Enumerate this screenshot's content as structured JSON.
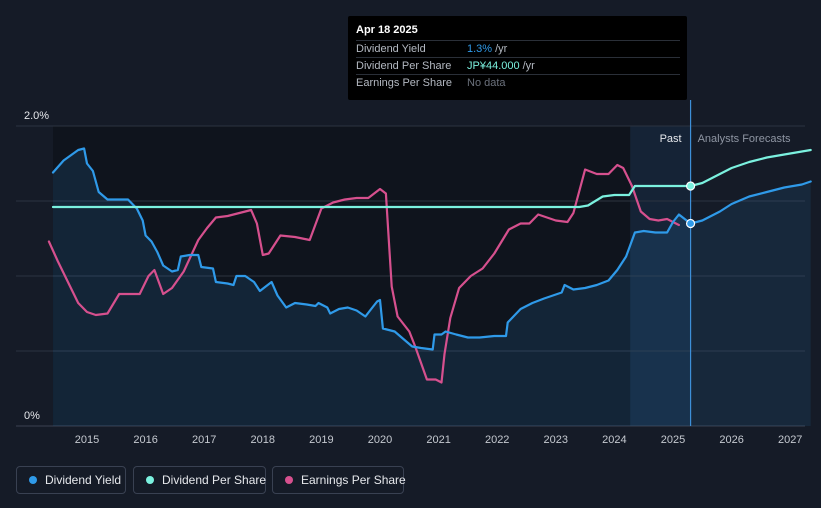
{
  "tooltip": {
    "date": "Apr 18 2025",
    "rows": [
      {
        "label": "Dividend Yield",
        "value": "1.3%",
        "unit": "/yr",
        "color": "#2f9ae9"
      },
      {
        "label": "Dividend Per Share",
        "value": "JP¥44.000",
        "unit": "/yr",
        "color": "#7bf1df"
      },
      {
        "label": "Earnings Per Share",
        "value": "No data",
        "unit": "",
        "color": "#6b717c"
      }
    ]
  },
  "legend": [
    {
      "label": "Dividend Yield",
      "color": "#2f9ae9"
    },
    {
      "label": "Dividend Per Share",
      "color": "#7bf1df"
    },
    {
      "label": "Earnings Per Share",
      "color": "#d6508e"
    }
  ],
  "chart_data": {
    "type": "line",
    "y_tick_labels": [
      "2.0%",
      "0%"
    ],
    "ylim": [
      0,
      2.0
    ],
    "xlim": [
      2014.25,
      2027.35
    ],
    "x_tick_labels": [
      "2015",
      "2016",
      "2017",
      "2018",
      "2019",
      "2020",
      "2021",
      "2022",
      "2023",
      "2024",
      "2025",
      "2026",
      "2027"
    ],
    "region_labels": {
      "past": "Past",
      "forecast": "Analysts Forecasts"
    },
    "past_end": 2025.3,
    "forecast_band_start": 2024.27,
    "grid": true,
    "series": [
      {
        "name": "Dividend Yield",
        "color": "#2f9ae9",
        "points": [
          [
            2014.42,
            1.69
          ],
          [
            2014.6,
            1.77
          ],
          [
            2014.85,
            1.84
          ],
          [
            2014.95,
            1.85
          ],
          [
            2015.0,
            1.75
          ],
          [
            2015.1,
            1.7
          ],
          [
            2015.2,
            1.56
          ],
          [
            2015.35,
            1.51
          ],
          [
            2015.5,
            1.51
          ],
          [
            2015.7,
            1.51
          ],
          [
            2015.85,
            1.45
          ],
          [
            2015.95,
            1.37
          ],
          [
            2016.0,
            1.27
          ],
          [
            2016.1,
            1.23
          ],
          [
            2016.2,
            1.16
          ],
          [
            2016.3,
            1.07
          ],
          [
            2016.45,
            1.03
          ],
          [
            2016.55,
            1.04
          ],
          [
            2016.6,
            1.13
          ],
          [
            2016.75,
            1.14
          ],
          [
            2016.9,
            1.14
          ],
          [
            2016.95,
            1.06
          ],
          [
            2017.15,
            1.05
          ],
          [
            2017.2,
            0.96
          ],
          [
            2017.4,
            0.95
          ],
          [
            2017.5,
            0.94
          ],
          [
            2017.55,
            1.0
          ],
          [
            2017.7,
            1.0
          ],
          [
            2017.85,
            0.96
          ],
          [
            2017.95,
            0.9
          ],
          [
            2018.05,
            0.93
          ],
          [
            2018.15,
            0.96
          ],
          [
            2018.25,
            0.87
          ],
          [
            2018.4,
            0.79
          ],
          [
            2018.55,
            0.82
          ],
          [
            2018.75,
            0.81
          ],
          [
            2018.9,
            0.8
          ],
          [
            2018.95,
            0.82
          ],
          [
            2019.1,
            0.79
          ],
          [
            2019.15,
            0.75
          ],
          [
            2019.3,
            0.78
          ],
          [
            2019.45,
            0.79
          ],
          [
            2019.6,
            0.77
          ],
          [
            2019.75,
            0.73
          ],
          [
            2019.85,
            0.78
          ],
          [
            2019.95,
            0.83
          ],
          [
            2020.0,
            0.84
          ],
          [
            2020.05,
            0.65
          ],
          [
            2020.25,
            0.63
          ],
          [
            2020.4,
            0.58
          ],
          [
            2020.55,
            0.53
          ],
          [
            2020.7,
            0.52
          ],
          [
            2020.9,
            0.51
          ],
          [
            2020.93,
            0.61
          ],
          [
            2021.05,
            0.61
          ],
          [
            2021.12,
            0.63
          ],
          [
            2021.3,
            0.61
          ],
          [
            2021.5,
            0.59
          ],
          [
            2021.7,
            0.59
          ],
          [
            2021.95,
            0.6
          ],
          [
            2022.15,
            0.6
          ],
          [
            2022.18,
            0.69
          ],
          [
            2022.4,
            0.78
          ],
          [
            2022.6,
            0.82
          ],
          [
            2022.8,
            0.85
          ],
          [
            2022.95,
            0.87
          ],
          [
            2023.1,
            0.89
          ],
          [
            2023.15,
            0.94
          ],
          [
            2023.3,
            0.91
          ],
          [
            2023.5,
            0.92
          ],
          [
            2023.7,
            0.94
          ],
          [
            2023.9,
            0.97
          ],
          [
            2024.05,
            1.04
          ],
          [
            2024.2,
            1.13
          ],
          [
            2024.35,
            1.29
          ],
          [
            2024.5,
            1.3
          ],
          [
            2024.7,
            1.29
          ],
          [
            2024.9,
            1.29
          ],
          [
            2025.0,
            1.36
          ],
          [
            2025.1,
            1.41
          ],
          [
            2025.2,
            1.38
          ],
          [
            2025.3,
            1.35
          ]
        ]
      },
      {
        "name": "Dividend Per Share",
        "color": "#7bf1df",
        "points": [
          [
            2014.42,
            1.46
          ],
          [
            2015.0,
            1.46
          ],
          [
            2016.0,
            1.46
          ],
          [
            2017.0,
            1.46
          ],
          [
            2018.0,
            1.46
          ],
          [
            2019.0,
            1.46
          ],
          [
            2020.0,
            1.46
          ],
          [
            2021.0,
            1.46
          ],
          [
            2022.0,
            1.46
          ],
          [
            2023.0,
            1.46
          ],
          [
            2023.4,
            1.46
          ],
          [
            2023.55,
            1.47
          ],
          [
            2023.8,
            1.53
          ],
          [
            2024.0,
            1.54
          ],
          [
            2024.25,
            1.54
          ],
          [
            2024.35,
            1.6
          ],
          [
            2025.3,
            1.6
          ]
        ]
      },
      {
        "name": "Earnings Per Share",
        "color": "#d6508e",
        "points": [
          [
            2014.35,
            1.23
          ],
          [
            2014.5,
            1.1
          ],
          [
            2014.7,
            0.94
          ],
          [
            2014.85,
            0.82
          ],
          [
            2015.0,
            0.76
          ],
          [
            2015.15,
            0.74
          ],
          [
            2015.35,
            0.75
          ],
          [
            2015.55,
            0.88
          ],
          [
            2015.75,
            0.88
          ],
          [
            2015.9,
            0.88
          ],
          [
            2016.05,
            1.0
          ],
          [
            2016.15,
            1.04
          ],
          [
            2016.3,
            0.88
          ],
          [
            2016.45,
            0.92
          ],
          [
            2016.65,
            1.03
          ],
          [
            2016.9,
            1.24
          ],
          [
            2017.05,
            1.32
          ],
          [
            2017.2,
            1.39
          ],
          [
            2017.4,
            1.4
          ],
          [
            2017.6,
            1.42
          ],
          [
            2017.8,
            1.44
          ],
          [
            2017.9,
            1.35
          ],
          [
            2018.0,
            1.14
          ],
          [
            2018.1,
            1.15
          ],
          [
            2018.3,
            1.27
          ],
          [
            2018.55,
            1.26
          ],
          [
            2018.8,
            1.24
          ],
          [
            2019.0,
            1.45
          ],
          [
            2019.2,
            1.49
          ],
          [
            2019.4,
            1.51
          ],
          [
            2019.6,
            1.52
          ],
          [
            2019.8,
            1.52
          ],
          [
            2020.0,
            1.58
          ],
          [
            2020.1,
            1.55
          ],
          [
            2020.2,
            0.93
          ],
          [
            2020.3,
            0.73
          ],
          [
            2020.5,
            0.63
          ],
          [
            2020.6,
            0.53
          ],
          [
            2020.8,
            0.31
          ],
          [
            2020.95,
            0.31
          ],
          [
            2021.05,
            0.29
          ],
          [
            2021.1,
            0.48
          ],
          [
            2021.2,
            0.72
          ],
          [
            2021.35,
            0.92
          ],
          [
            2021.55,
            1.0
          ],
          [
            2021.75,
            1.05
          ],
          [
            2021.95,
            1.15
          ],
          [
            2022.2,
            1.31
          ],
          [
            2022.4,
            1.35
          ],
          [
            2022.55,
            1.35
          ],
          [
            2022.7,
            1.41
          ],
          [
            2022.85,
            1.39
          ],
          [
            2023.0,
            1.37
          ],
          [
            2023.2,
            1.36
          ],
          [
            2023.3,
            1.42
          ],
          [
            2023.5,
            1.71
          ],
          [
            2023.7,
            1.68
          ],
          [
            2023.9,
            1.68
          ],
          [
            2024.05,
            1.74
          ],
          [
            2024.15,
            1.72
          ],
          [
            2024.3,
            1.6
          ],
          [
            2024.45,
            1.43
          ],
          [
            2024.6,
            1.38
          ],
          [
            2024.75,
            1.37
          ],
          [
            2024.9,
            1.38
          ],
          [
            2025.1,
            1.34
          ]
        ]
      },
      {
        "name": "Dividend Yield Forecast",
        "color": "#2f9ae9",
        "points": [
          [
            2025.3,
            1.35
          ],
          [
            2025.5,
            1.37
          ],
          [
            2025.8,
            1.43
          ],
          [
            2026.0,
            1.48
          ],
          [
            2026.3,
            1.53
          ],
          [
            2026.6,
            1.56
          ],
          [
            2026.9,
            1.59
          ],
          [
            2027.2,
            1.61
          ],
          [
            2027.35,
            1.63
          ]
        ]
      },
      {
        "name": "Dividend Per Share Forecast",
        "color": "#7bf1df",
        "points": [
          [
            2025.3,
            1.6
          ],
          [
            2025.5,
            1.62
          ],
          [
            2025.7,
            1.66
          ],
          [
            2026.0,
            1.72
          ],
          [
            2026.3,
            1.76
          ],
          [
            2026.6,
            1.79
          ],
          [
            2026.9,
            1.81
          ],
          [
            2027.2,
            1.83
          ],
          [
            2027.35,
            1.84
          ]
        ]
      }
    ],
    "markers": [
      {
        "series": "Dividend Per Share",
        "x": 2025.3,
        "y": 1.6
      },
      {
        "series": "Dividend Yield",
        "x": 2025.3,
        "y": 1.35
      }
    ]
  }
}
